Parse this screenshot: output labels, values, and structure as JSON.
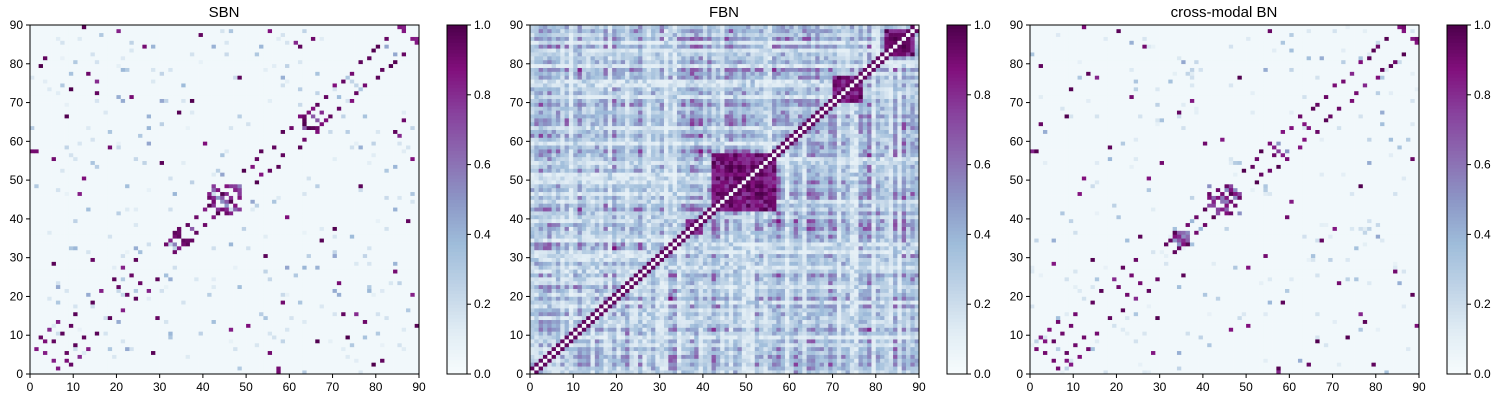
{
  "colormap": {
    "name": "BuPu",
    "stops": [
      "#f7fcfd",
      "#e0ecf4",
      "#bfd3e6",
      "#9ebcda",
      "#8c96c6",
      "#8c6bb1",
      "#88419d",
      "#810f7c",
      "#4d004b"
    ]
  },
  "chart_data": [
    {
      "type": "heatmap",
      "title": "SBN",
      "xlabel": "",
      "ylabel": "",
      "xlim": [
        0,
        90
      ],
      "ylim": [
        0,
        90
      ],
      "x_ticks": [
        "0",
        "10",
        "20",
        "30",
        "40",
        "50",
        "60",
        "70",
        "80",
        "90"
      ],
      "y_ticks": [
        "0",
        "10",
        "20",
        "30",
        "40",
        "50",
        "60",
        "70",
        "80",
        "90"
      ],
      "grid_size": 90,
      "symmetric": true,
      "colorbar": {
        "range": [
          0,
          1
        ],
        "ticks": [
          "0.0",
          "0.2",
          "0.4",
          "0.6",
          "0.8",
          "1.0"
        ]
      },
      "seed": 11,
      "density": "sparse",
      "block_regions": [
        [
          33,
          37
        ],
        [
          41,
          48
        ],
        [
          63,
          67
        ]
      ],
      "strong_cells": [
        [
          1,
          6
        ],
        [
          2,
          9
        ],
        [
          3,
          5
        ],
        [
          4,
          11
        ],
        [
          5,
          8
        ],
        [
          6,
          13
        ],
        [
          7,
          10
        ],
        [
          8,
          3
        ],
        [
          9,
          12
        ],
        [
          10,
          15
        ],
        [
          12,
          90
        ],
        [
          13,
          77
        ],
        [
          14,
          18
        ],
        [
          16,
          21
        ],
        [
          19,
          24
        ],
        [
          20,
          22
        ],
        [
          21,
          27
        ],
        [
          23,
          25
        ],
        [
          24,
          29
        ],
        [
          28,
          5
        ],
        [
          29,
          14
        ],
        [
          31,
          33
        ],
        [
          32,
          34
        ],
        [
          33,
          36
        ],
        [
          34,
          35
        ],
        [
          36,
          38
        ],
        [
          38,
          40
        ],
        [
          40,
          42
        ],
        [
          41,
          45
        ],
        [
          42,
          44
        ],
        [
          43,
          47
        ],
        [
          44,
          46
        ],
        [
          45,
          48
        ],
        [
          46,
          41
        ],
        [
          47,
          43
        ],
        [
          49,
          52
        ],
        [
          50,
          12
        ],
        [
          51,
          53
        ],
        [
          52,
          55
        ],
        [
          53,
          57
        ],
        [
          55,
          88
        ],
        [
          56,
          58
        ],
        [
          57,
          1
        ],
        [
          58,
          62
        ],
        [
          60,
          63
        ],
        [
          62,
          66
        ],
        [
          63,
          64
        ],
        [
          65,
          68
        ],
        [
          66,
          69
        ],
        [
          67,
          34
        ],
        [
          68,
          71
        ],
        [
          70,
          74
        ],
        [
          71,
          23
        ],
        [
          72,
          75
        ],
        [
          73,
          9
        ],
        [
          74,
          77
        ],
        [
          76,
          80
        ],
        [
          78,
          81
        ],
        [
          80,
          84
        ],
        [
          82,
          86
        ],
        [
          83,
          79
        ],
        [
          85,
          89
        ],
        [
          86,
          88
        ],
        [
          88,
          20
        ],
        [
          89,
          86
        ],
        [
          86,
          65
        ],
        [
          84,
          62
        ],
        [
          81,
          3
        ],
        [
          75,
          15
        ],
        [
          61,
          85
        ],
        [
          59,
          40
        ],
        [
          54,
          30
        ],
        [
          48,
          76
        ],
        [
          39,
          87
        ],
        [
          37,
          70
        ],
        [
          26,
          84
        ],
        [
          18,
          58
        ],
        [
          15,
          72
        ],
        [
          11,
          46
        ],
        [
          8,
          66
        ],
        [
          5,
          55
        ],
        [
          2,
          79
        ],
        [
          0,
          57
        ]
      ]
    },
    {
      "type": "heatmap",
      "title": "FBN",
      "xlabel": "",
      "ylabel": "",
      "xlim": [
        0,
        90
      ],
      "ylim": [
        0,
        90
      ],
      "x_ticks": [
        "0",
        "10",
        "20",
        "30",
        "40",
        "50",
        "60",
        "70",
        "80",
        "90"
      ],
      "y_ticks": [
        "0",
        "10",
        "20",
        "30",
        "40",
        "50",
        "60",
        "70",
        "80",
        "90"
      ],
      "grid_size": 90,
      "symmetric": true,
      "colorbar": {
        "range": [
          0,
          1
        ],
        "ticks": [
          "0.0",
          "0.2",
          "0.4",
          "0.6",
          "0.8",
          "1.0"
        ]
      },
      "seed": 23,
      "density": "dense",
      "block_regions": [
        [
          36,
          39
        ],
        [
          42,
          56
        ],
        [
          70,
          76
        ],
        [
          82,
          88
        ]
      ],
      "strong_cells": []
    },
    {
      "type": "heatmap",
      "title": "cross-modal BN",
      "xlabel": "",
      "ylabel": "",
      "xlim": [
        0,
        90
      ],
      "ylim": [
        0,
        90
      ],
      "x_ticks": [
        "0",
        "10",
        "20",
        "30",
        "40",
        "50",
        "60",
        "70",
        "80",
        "90"
      ],
      "y_ticks": [
        "0",
        "10",
        "20",
        "30",
        "40",
        "50",
        "60",
        "70",
        "80",
        "90"
      ],
      "grid_size": 90,
      "symmetric": true,
      "colorbar": {
        "range": [
          0,
          1
        ],
        "ticks": [
          "0.0",
          "0.2",
          "0.4",
          "0.6",
          "0.8",
          "1.0"
        ]
      },
      "seed": 37,
      "density": "sparse",
      "block_regions": [
        [
          33,
          36
        ],
        [
          41,
          48
        ],
        [
          55,
          60
        ]
      ],
      "strong_cells": [
        [
          1,
          6
        ],
        [
          2,
          9
        ],
        [
          3,
          5
        ],
        [
          4,
          11
        ],
        [
          5,
          8
        ],
        [
          6,
          13
        ],
        [
          7,
          10
        ],
        [
          8,
          3
        ],
        [
          9,
          12
        ],
        [
          10,
          15
        ],
        [
          12,
          90
        ],
        [
          13,
          77
        ],
        [
          14,
          18
        ],
        [
          16,
          21
        ],
        [
          19,
          24
        ],
        [
          20,
          22
        ],
        [
          21,
          27
        ],
        [
          23,
          25
        ],
        [
          24,
          29
        ],
        [
          28,
          5
        ],
        [
          29,
          14
        ],
        [
          31,
          33
        ],
        [
          32,
          34
        ],
        [
          33,
          36
        ],
        [
          34,
          35
        ],
        [
          36,
          38
        ],
        [
          38,
          40
        ],
        [
          40,
          42
        ],
        [
          41,
          45
        ],
        [
          42,
          44
        ],
        [
          43,
          47
        ],
        [
          44,
          46
        ],
        [
          45,
          48
        ],
        [
          46,
          41
        ],
        [
          47,
          43
        ],
        [
          49,
          52
        ],
        [
          50,
          12
        ],
        [
          51,
          53
        ],
        [
          52,
          55
        ],
        [
          53,
          57
        ],
        [
          55,
          88
        ],
        [
          56,
          58
        ],
        [
          57,
          1
        ],
        [
          58,
          62
        ],
        [
          60,
          63
        ],
        [
          62,
          66
        ],
        [
          63,
          64
        ],
        [
          65,
          68
        ],
        [
          66,
          69
        ],
        [
          67,
          34
        ],
        [
          68,
          71
        ],
        [
          70,
          74
        ],
        [
          71,
          23
        ],
        [
          72,
          75
        ],
        [
          73,
          9
        ],
        [
          74,
          77
        ],
        [
          76,
          80
        ],
        [
          78,
          81
        ],
        [
          80,
          84
        ],
        [
          82,
          86
        ],
        [
          83,
          79
        ],
        [
          85,
          89
        ],
        [
          86,
          88
        ],
        [
          88,
          20
        ],
        [
          89,
          86
        ],
        [
          76,
          15
        ],
        [
          59,
          40
        ],
        [
          54,
          30
        ],
        [
          48,
          76
        ],
        [
          37,
          70
        ],
        [
          26,
          84
        ],
        [
          18,
          58
        ],
        [
          11,
          46
        ],
        [
          8,
          66
        ],
        [
          2,
          79
        ],
        [
          0,
          57
        ],
        [
          64,
          2
        ],
        [
          35,
          25
        ],
        [
          44,
          60
        ],
        [
          27,
          50
        ]
      ]
    }
  ]
}
